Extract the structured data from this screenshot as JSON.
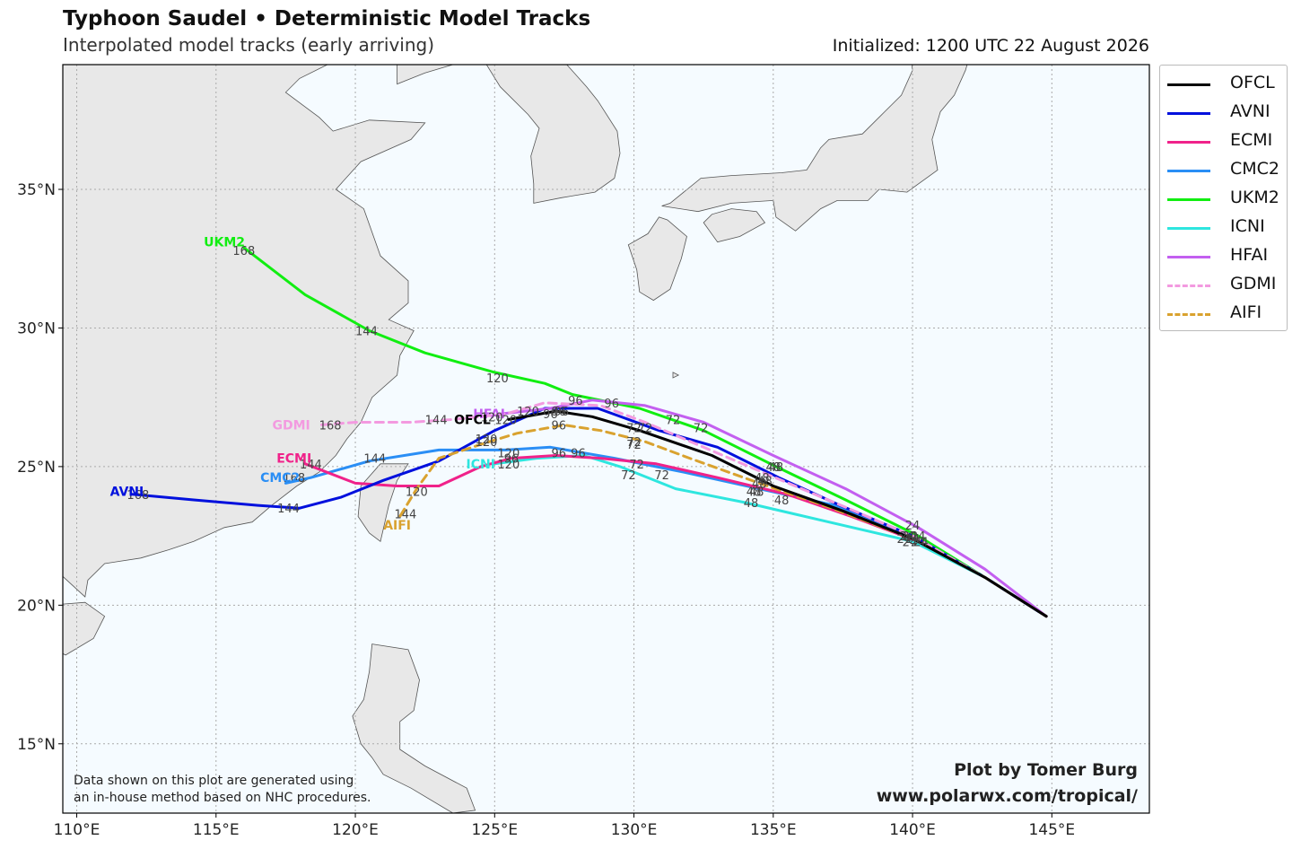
{
  "title": "Typhoon Saudel • Deterministic Model Tracks",
  "subtitle": "Interpolated model tracks (early arriving)",
  "initialized": "Initialized: 1200 UTC 22 August 2026",
  "credit": {
    "line1": "Plot by Tomer Burg",
    "line2": "www.polarwx.com/tropical/"
  },
  "disclaimer": {
    "line1": "Data shown on this plot are generated using",
    "line2": "an in-house method based on NHC procedures."
  },
  "map": {
    "lon_range": [
      109.5,
      148.5
    ],
    "lat_range": [
      12.5,
      39.5
    ],
    "lon_ticks": [
      {
        "v": 110,
        "label": "110°E"
      },
      {
        "v": 115,
        "label": "115°E"
      },
      {
        "v": 120,
        "label": "120°E"
      },
      {
        "v": 125,
        "label": "125°E"
      },
      {
        "v": 130,
        "label": "130°E"
      },
      {
        "v": 135,
        "label": "135°E"
      },
      {
        "v": 140,
        "label": "140°E"
      },
      {
        "v": 145,
        "label": "145°E"
      }
    ],
    "lat_ticks": [
      {
        "v": 15,
        "label": "15°N"
      },
      {
        "v": 20,
        "label": "20°N"
      },
      {
        "v": 25,
        "label": "25°N"
      },
      {
        "v": 30,
        "label": "30°N"
      },
      {
        "v": 35,
        "label": "35°N"
      }
    ],
    "ocean_color": "#f5fbff",
    "land_color": "#e8e8e8",
    "grid_color": "#aaaaaa"
  },
  "legend": [
    {
      "name": "OFCL",
      "color": "#000000",
      "dashed": false
    },
    {
      "name": "AVNI",
      "color": "#0010dd",
      "dashed": false
    },
    {
      "name": "ECMI",
      "color": "#f0228a",
      "dashed": false
    },
    {
      "name": "CMC2",
      "color": "#2a8ef5",
      "dashed": false
    },
    {
      "name": "UKM2",
      "color": "#11ee11",
      "dashed": false
    },
    {
      "name": "ICNI",
      "color": "#2ee6df",
      "dashed": false
    },
    {
      "name": "HFAI",
      "color": "#c35ff0",
      "dashed": false
    },
    {
      "name": "GDMI",
      "color": "#f39ae0",
      "dashed": true
    },
    {
      "name": "AIFI",
      "color": "#d9a22f",
      "dashed": true
    }
  ],
  "tracks": [
    {
      "name": "UKM2",
      "color": "#11ee11",
      "dashed": false,
      "label": "UKM2",
      "label_lon": 115.3,
      "label_lat": 33.1,
      "points": [
        [
          144.8,
          19.6
        ],
        [
          142.6,
          21.0
        ],
        [
          140.2,
          22.5
        ],
        [
          137.6,
          23.8
        ],
        [
          135.1,
          25.0
        ],
        [
          132.5,
          26.3
        ],
        [
          130.2,
          27.1
        ],
        [
          127.8,
          27.6
        ],
        [
          126.8,
          28.0
        ],
        [
          125.0,
          28.4
        ],
        [
          122.5,
          29.1
        ],
        [
          120.5,
          29.9
        ],
        [
          118.2,
          31.2
        ],
        [
          116.0,
          32.9
        ]
      ],
      "hour_labels": [
        {
          "t": "24",
          "lon": 140.2,
          "lat": 22.5
        },
        {
          "t": "48",
          "lon": 135.1,
          "lat": 25.0
        },
        {
          "t": "72",
          "lon": 132.4,
          "lat": 26.4
        },
        {
          "t": "96",
          "lon": 127.9,
          "lat": 27.4
        },
        {
          "t": "120",
          "lon": 125.1,
          "lat": 28.2
        },
        {
          "t": "144",
          "lon": 120.4,
          "lat": 29.9
        },
        {
          "t": "168",
          "lon": 116.0,
          "lat": 32.8
        }
      ]
    },
    {
      "name": "ICNI",
      "color": "#2ee6df",
      "dashed": false,
      "label": "ICNI",
      "label_lon": 124.5,
      "label_lat": 25.1,
      "points": [
        [
          144.8,
          19.6
        ],
        [
          142.6,
          21.0
        ],
        [
          140.0,
          22.3
        ],
        [
          137.0,
          23.0
        ],
        [
          134.0,
          23.7
        ],
        [
          131.5,
          24.2
        ],
        [
          129.5,
          25.0
        ],
        [
          128.2,
          25.4
        ],
        [
          126.5,
          25.3
        ],
        [
          125.0,
          25.1
        ]
      ],
      "hour_labels": [
        {
          "t": "24",
          "lon": 140.2,
          "lat": 22.3
        },
        {
          "t": "48",
          "lon": 134.2,
          "lat": 23.7
        },
        {
          "t": "72",
          "lon": 129.8,
          "lat": 24.7
        },
        {
          "t": "96",
          "lon": 128.0,
          "lat": 25.5
        },
        {
          "t": "120",
          "lon": 125.5,
          "lat": 25.1
        }
      ]
    },
    {
      "name": "CMC2",
      "color": "#2a8ef5",
      "dashed": false,
      "label": "CMC2",
      "label_lon": 117.3,
      "label_lat": 24.6,
      "points": [
        [
          144.8,
          19.6
        ],
        [
          142.6,
          21.0
        ],
        [
          140.0,
          22.5
        ],
        [
          137.2,
          23.6
        ],
        [
          134.5,
          24.2
        ],
        [
          131.8,
          24.8
        ],
        [
          129.3,
          25.3
        ],
        [
          127.0,
          25.7
        ],
        [
          125.4,
          25.6
        ],
        [
          123.0,
          25.6
        ],
        [
          120.5,
          25.2
        ],
        [
          118.4,
          24.6
        ],
        [
          117.5,
          24.4
        ]
      ],
      "hour_labels": [
        {
          "t": "24",
          "lon": 139.9,
          "lat": 22.3
        },
        {
          "t": "48",
          "lon": 134.4,
          "lat": 24.1
        },
        {
          "t": "72",
          "lon": 130.1,
          "lat": 25.1
        },
        {
          "t": "96",
          "lon": 127.3,
          "lat": 25.5
        },
        {
          "t": "120",
          "lon": 125.5,
          "lat": 25.5
        },
        {
          "t": "144",
          "lon": 120.7,
          "lat": 25.3
        },
        {
          "t": "168",
          "lon": 117.8,
          "lat": 24.6
        }
      ]
    },
    {
      "name": "ECMI",
      "color": "#f0228a",
      "dashed": false,
      "label": "ECMI",
      "label_lon": 117.8,
      "label_lat": 25.3,
      "points": [
        [
          144.8,
          19.6
        ],
        [
          142.6,
          21.0
        ],
        [
          140.2,
          22.3
        ],
        [
          137.8,
          23.2
        ],
        [
          135.5,
          24.0
        ],
        [
          133.0,
          24.6
        ],
        [
          130.8,
          25.1
        ],
        [
          128.8,
          25.3
        ],
        [
          127.2,
          25.4
        ],
        [
          125.6,
          25.3
        ],
        [
          124.5,
          25.0
        ],
        [
          123.0,
          24.3
        ],
        [
          121.5,
          24.3
        ],
        [
          120.0,
          24.4
        ],
        [
          118.2,
          25.1
        ]
      ],
      "hour_labels": [
        {
          "t": "24",
          "lon": 140.3,
          "lat": 22.3
        },
        {
          "t": "48",
          "lon": 135.3,
          "lat": 23.8
        },
        {
          "t": "72",
          "lon": 131.0,
          "lat": 24.7
        },
        {
          "t": "96",
          "lon": 125.6,
          "lat": 25.3
        },
        {
          "t": "120",
          "lon": 122.2,
          "lat": 24.1
        },
        {
          "t": "144",
          "lon": 118.4,
          "lat": 25.1
        }
      ]
    },
    {
      "name": "AVNI",
      "color": "#0010dd",
      "dashed": false,
      "label": "AVNI",
      "label_lon": 111.8,
      "label_lat": 24.1,
      "points": [
        [
          144.8,
          19.6
        ],
        [
          142.6,
          21.0
        ],
        [
          140.0,
          22.5
        ],
        [
          137.4,
          23.6
        ],
        [
          135.2,
          24.6
        ],
        [
          133.0,
          25.7
        ],
        [
          130.9,
          26.3
        ],
        [
          128.7,
          27.1
        ],
        [
          126.8,
          27.1
        ],
        [
          125.0,
          26.3
        ],
        [
          123.0,
          25.2
        ],
        [
          121.0,
          24.5
        ],
        [
          119.5,
          23.9
        ],
        [
          118.0,
          23.5
        ],
        [
          116.5,
          23.6
        ],
        [
          114.2,
          23.8
        ],
        [
          112.0,
          24.0
        ]
      ],
      "hour_labels": [
        {
          "t": "24",
          "lon": 139.7,
          "lat": 22.4
        },
        {
          "t": "48",
          "lon": 134.5,
          "lat": 24.4
        },
        {
          "t": "72",
          "lon": 130.0,
          "lat": 25.8
        },
        {
          "t": "96",
          "lon": 127.0,
          "lat": 26.9
        },
        {
          "t": "120",
          "lon": 124.7,
          "lat": 26.0
        },
        {
          "t": "144",
          "lon": 117.6,
          "lat": 23.5
        },
        {
          "t": "168",
          "lon": 112.2,
          "lat": 24.0
        }
      ]
    },
    {
      "name": "HFAI",
      "color": "#c35ff0",
      "dashed": false,
      "label": "HFAI",
      "label_lon": 124.8,
      "label_lat": 26.9,
      "points": [
        [
          144.8,
          19.6
        ],
        [
          142.6,
          21.3
        ],
        [
          140.2,
          22.8
        ],
        [
          137.6,
          24.2
        ],
        [
          135.0,
          25.4
        ],
        [
          132.5,
          26.6
        ],
        [
          130.4,
          27.2
        ],
        [
          128.5,
          27.4
        ],
        [
          127.0,
          27.1
        ],
        [
          125.2,
          26.9
        ]
      ],
      "hour_labels": [
        {
          "t": "24",
          "lon": 140.0,
          "lat": 22.9
        },
        {
          "t": "48",
          "lon": 135.0,
          "lat": 25.0
        },
        {
          "t": "72",
          "lon": 131.4,
          "lat": 26.7
        },
        {
          "t": "96",
          "lon": 129.2,
          "lat": 27.3
        },
        {
          "t": "120",
          "lon": 126.2,
          "lat": 27.0
        }
      ]
    },
    {
      "name": "GDMI",
      "color": "#f39ae0",
      "dashed": true,
      "label": "GDMI",
      "label_lon": 117.7,
      "label_lat": 26.5,
      "points": [
        [
          144.8,
          19.6
        ],
        [
          142.6,
          21.0
        ],
        [
          140.0,
          22.5
        ],
        [
          137.2,
          23.7
        ],
        [
          134.6,
          24.8
        ],
        [
          132.5,
          25.7
        ],
        [
          130.4,
          26.6
        ],
        [
          128.8,
          27.2
        ],
        [
          126.8,
          27.3
        ],
        [
          125.4,
          26.9
        ],
        [
          123.5,
          26.7
        ],
        [
          122.0,
          26.6
        ],
        [
          120.0,
          26.6
        ],
        [
          118.7,
          26.5
        ]
      ],
      "hour_labels": [
        {
          "t": "24",
          "lon": 139.9,
          "lat": 22.5
        },
        {
          "t": "48",
          "lon": 134.6,
          "lat": 24.6
        },
        {
          "t": "72",
          "lon": 130.4,
          "lat": 26.4
        },
        {
          "t": "96",
          "lon": 127.4,
          "lat": 27.0
        },
        {
          "t": "120",
          "lon": 124.9,
          "lat": 26.8
        },
        {
          "t": "144",
          "lon": 122.9,
          "lat": 26.7
        },
        {
          "t": "168",
          "lon": 119.1,
          "lat": 26.5
        }
      ]
    },
    {
      "name": "AIFI",
      "color": "#d9a22f",
      "dashed": true,
      "label": "AIFI",
      "label_lon": 121.5,
      "label_lat": 22.9,
      "points": [
        [
          144.8,
          19.6
        ],
        [
          142.6,
          21.0
        ],
        [
          140.0,
          22.4
        ],
        [
          137.1,
          23.5
        ],
        [
          134.5,
          24.4
        ],
        [
          132.0,
          25.3
        ],
        [
          130.4,
          25.9
        ],
        [
          128.8,
          26.3
        ],
        [
          127.5,
          26.5
        ],
        [
          125.8,
          26.2
        ],
        [
          124.5,
          25.8
        ],
        [
          123.0,
          25.3
        ],
        [
          122.2,
          24.2
        ],
        [
          121.6,
          23.2
        ]
      ],
      "hour_labels": [
        {
          "t": "24",
          "lon": 140.0,
          "lat": 22.4
        },
        {
          "t": "48",
          "lon": 134.3,
          "lat": 24.1
        },
        {
          "t": "72",
          "lon": 130.0,
          "lat": 25.9
        },
        {
          "t": "96",
          "lon": 127.3,
          "lat": 26.5
        },
        {
          "t": "120",
          "lon": 124.7,
          "lat": 25.9
        },
        {
          "t": "144",
          "lon": 121.8,
          "lat": 23.3
        }
      ]
    },
    {
      "name": "OFCL",
      "color": "#000000",
      "dashed": false,
      "label": "OFCL",
      "label_lon": 124.2,
      "label_lat": 26.7,
      "points": [
        [
          144.8,
          19.6
        ],
        [
          142.6,
          21.0
        ],
        [
          140.0,
          22.4
        ],
        [
          137.5,
          23.4
        ],
        [
          135.0,
          24.3
        ],
        [
          132.8,
          25.4
        ],
        [
          130.2,
          26.3
        ],
        [
          128.5,
          26.8
        ],
        [
          127.2,
          27.0
        ],
        [
          125.5,
          26.7
        ]
      ],
      "hour_labels": [
        {
          "t": "24",
          "lon": 139.8,
          "lat": 22.5
        },
        {
          "t": "48",
          "lon": 134.7,
          "lat": 24.5
        },
        {
          "t": "72",
          "lon": 130.0,
          "lat": 26.4
        },
        {
          "t": "96",
          "lon": 127.3,
          "lat": 27.0
        },
        {
          "t": "120",
          "lon": 125.4,
          "lat": 26.7
        }
      ]
    }
  ]
}
